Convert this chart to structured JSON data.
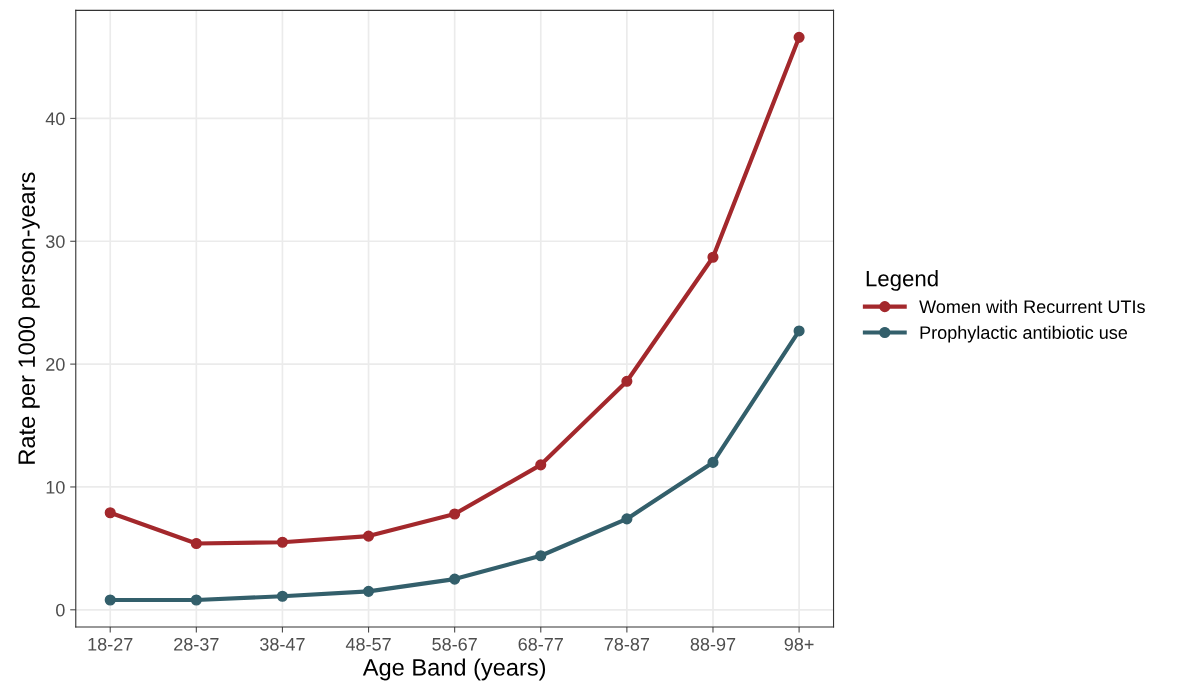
{
  "chart_data": {
    "type": "line",
    "xlabel": "Age Band (years)",
    "ylabel": "Rate per 1000 person-years",
    "legend_title": "Legend",
    "categories": [
      "18-27",
      "28-37",
      "38-47",
      "48-57",
      "58-67",
      "68-77",
      "78-87",
      "88-97",
      "98+"
    ],
    "series": [
      {
        "name": "Women with Recurrent UTIs",
        "color": "#a3282c",
        "values": [
          7.9,
          5.4,
          5.5,
          6.0,
          7.8,
          11.8,
          18.6,
          28.7,
          46.6
        ]
      },
      {
        "name": "Prophylactic antibiotic use",
        "color": "#335f6b",
        "values": [
          0.8,
          0.8,
          1.1,
          1.5,
          2.5,
          4.4,
          7.4,
          12.0,
          22.7
        ]
      }
    ],
    "ylim": [
      -1.4,
      48.8
    ],
    "yticks": [
      0,
      10,
      20,
      30,
      40
    ],
    "grid": true,
    "legend": "right",
    "marker": "circle",
    "line_style": "solid"
  }
}
